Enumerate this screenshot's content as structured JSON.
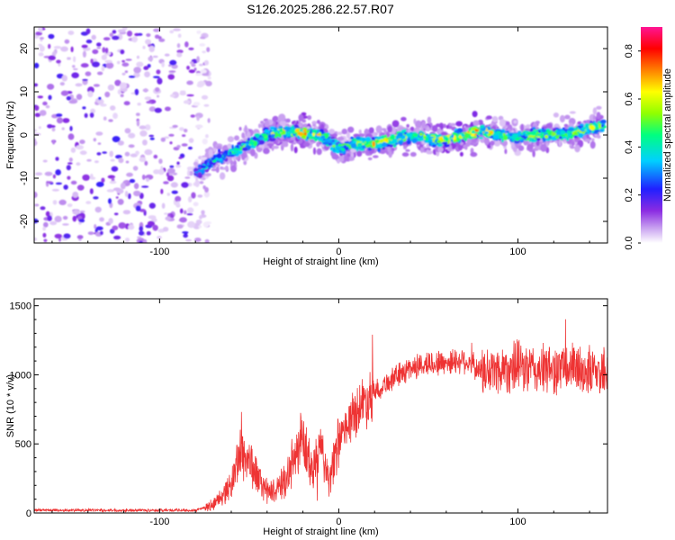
{
  "title": "S126.2025.286.22.57.R07",
  "chart_data": [
    {
      "type": "heatmap",
      "name": "spectrogram",
      "xlabel": "Height of straight line (km)",
      "ylabel": "Frequency (Hz)",
      "xlim": [
        -170,
        150
      ],
      "ylim": [
        -25,
        25
      ],
      "xticks": [
        -100,
        0,
        100
      ],
      "yticks": [
        -20,
        -10,
        0,
        10,
        20
      ],
      "ridge": {
        "x": [
          -80,
          -70,
          -60,
          -50,
          -40,
          -30,
          -20,
          -10,
          0,
          10,
          20,
          30,
          40,
          50,
          60,
          70,
          80,
          90,
          100,
          110,
          120,
          130,
          140,
          148
        ],
        "freq": [
          -9,
          -6,
          -4,
          -2,
          0,
          1,
          0.5,
          0,
          -3,
          -2,
          -2,
          -1,
          0,
          -1,
          -1,
          0,
          1,
          0,
          -0.5,
          0,
          0,
          0.5,
          1.5,
          2
        ],
        "amplitude": [
          0.35,
          0.45,
          0.5,
          0.55,
          0.6,
          0.7,
          0.8,
          0.65,
          0.55,
          0.6,
          0.7,
          0.75,
          0.65,
          0.7,
          0.75,
          0.85,
          0.8,
          0.6,
          0.55,
          0.65,
          0.6,
          0.6,
          0.7,
          0.6
        ]
      },
      "noise_region_x": [
        -170,
        -80
      ],
      "colorbar": {
        "label": "Normalized spectral amplitude",
        "range": [
          0.0,
          0.9
        ],
        "ticks": [
          0.0,
          0.2,
          0.4,
          0.6,
          0.8
        ],
        "tick_labels": [
          "0.0",
          "0.2",
          "0.4",
          "0.6",
          "0.8"
        ]
      }
    },
    {
      "type": "line",
      "name": "snr",
      "xlabel": "Height of straight line (km)",
      "ylabel": "SNR (10 * v/v)",
      "xlim": [
        -170,
        150
      ],
      "ylim": [
        0,
        1550
      ],
      "xticks": [
        -100,
        0,
        100
      ],
      "yticks": [
        0,
        500,
        1000,
        1500
      ],
      "line_color": "#ee3333",
      "envelope": {
        "x": [
          -170,
          -80,
          -70,
          -60,
          -55,
          -50,
          -45,
          -40,
          -35,
          -30,
          -25,
          -20,
          -15,
          -10,
          -5,
          0,
          5,
          10,
          20,
          30,
          40,
          50,
          60,
          70,
          80,
          90,
          100,
          110,
          120,
          130,
          140,
          150
        ],
        "y": [
          20,
          20,
          60,
          200,
          450,
          380,
          250,
          150,
          160,
          230,
          380,
          520,
          300,
          460,
          220,
          520,
          640,
          750,
          880,
          970,
          1050,
          1080,
          1090,
          1110,
          1020,
          1040,
          1060,
          1030,
          1040,
          1050,
          1020,
          1030
        ]
      }
    }
  ]
}
